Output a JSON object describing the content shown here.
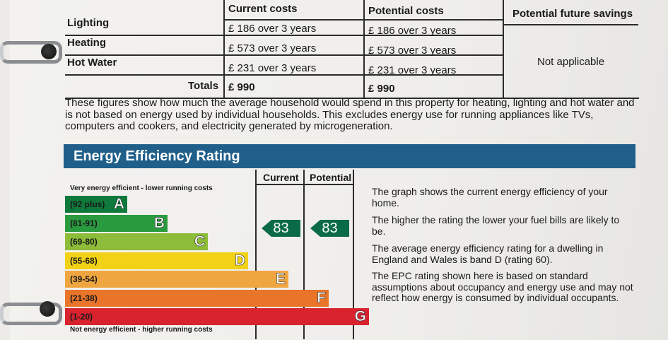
{
  "costs_table": {
    "headers": {
      "current": "Current costs",
      "potential": "Potential costs",
      "savings": "Potential future savings"
    },
    "rows": [
      {
        "label": "Lighting",
        "current": "£ 186 over 3 years",
        "potential": "£ 186 over 3 years"
      },
      {
        "label": "Heating",
        "current": "£ 573 over 3 years",
        "potential": "£ 573 over 3 years"
      },
      {
        "label": "Hot Water",
        "current": "£ 231 over 3 years",
        "potential": "£ 231 over 3 years"
      }
    ],
    "totals": {
      "label": "Totals",
      "current": "£ 990",
      "potential": "£ 990"
    },
    "savings_value": "Not applicable"
  },
  "explanation": "These figures show how much the average household would spend in this property for heating, lighting and hot water and is not based on energy used by individual households. This excludes energy use for running appliances like TVs, computers and cookers, and electricity generated by microgeneration.",
  "rating": {
    "title": "Energy Efficiency Rating",
    "col_current": "Current",
    "col_potential": "Potential",
    "top_caption": "Very energy efficient - lower running costs",
    "bottom_caption": "Not energy efficient - higher running costs",
    "bands": [
      {
        "range": "(92 plus)",
        "letter": "A",
        "color": "#0f7a3c"
      },
      {
        "range": "(81-91)",
        "letter": "B",
        "color": "#2a9a3f"
      },
      {
        "range": "(69-80)",
        "letter": "C",
        "color": "#8cbc3a"
      },
      {
        "range": "(55-68)",
        "letter": "D",
        "color": "#f2d217"
      },
      {
        "range": "(39-54)",
        "letter": "E",
        "color": "#f0a640"
      },
      {
        "range": "(21-38)",
        "letter": "F",
        "color": "#e8752a"
      },
      {
        "range": "(1-20)",
        "letter": "G",
        "color": "#d8232e"
      }
    ],
    "current_value": "83",
    "potential_value": "83",
    "arrow_color": "#0a6b47"
  },
  "description": [
    "The graph shows the current energy efficiency of your home.",
    "The higher the rating the lower your fuel bills are likely to be.",
    "The average energy efficiency rating for a dwelling in England and Wales is band D (rating 60).",
    "The EPC rating shown here is based on standard assumptions about occupancy and energy use and may not reflect how energy is consumed by individual occupants."
  ]
}
